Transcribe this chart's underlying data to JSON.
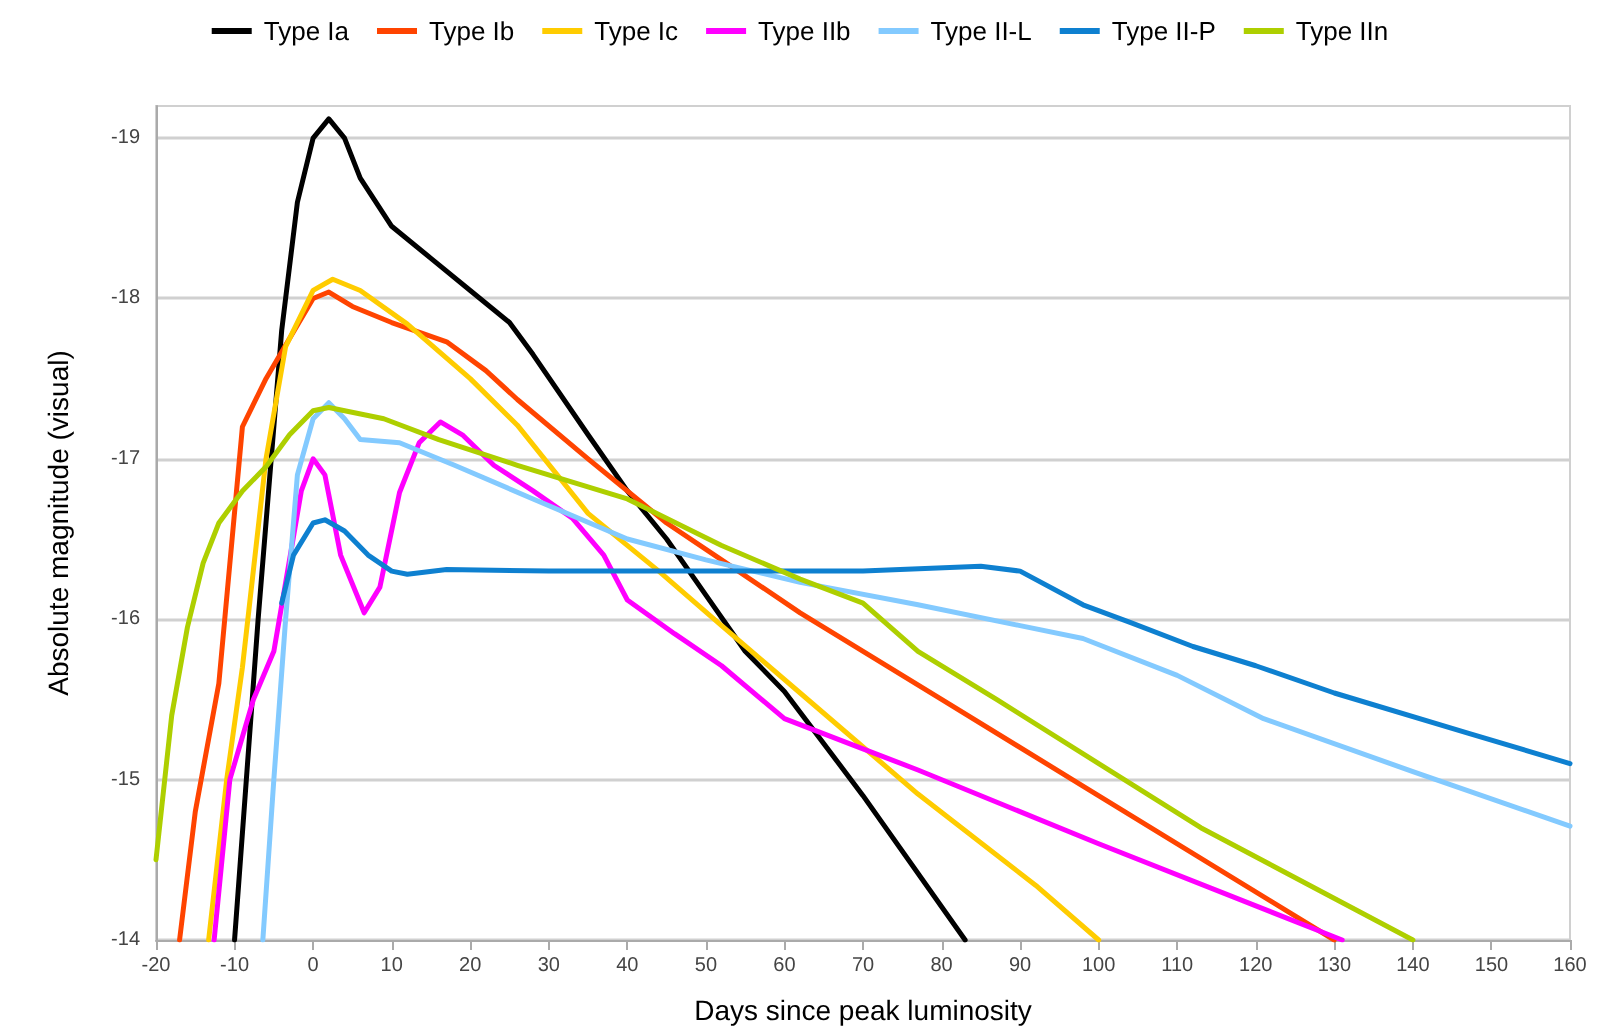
{
  "chart_data": {
    "type": "line",
    "xlabel": "Days since peak luminosity",
    "ylabel": "Absolute magnitude (visual)",
    "xlim": [
      -20,
      160
    ],
    "xticks": [
      -20,
      -10,
      0,
      10,
      20,
      30,
      40,
      50,
      60,
      70,
      80,
      90,
      100,
      110,
      120,
      130,
      140,
      150,
      160
    ],
    "ylim": [
      -14,
      -19.2
    ],
    "yticks": [
      -14,
      -15,
      -16,
      -17,
      -18,
      -19
    ],
    "grid": "y",
    "legend": "top",
    "marker": "none",
    "series": [
      {
        "name": "Type Ia",
        "color": "#000000",
        "x": [
          -10,
          -7,
          -4,
          -2,
          0,
          2,
          4,
          6,
          10,
          15,
          20,
          25,
          28,
          35,
          40,
          45,
          50,
          55,
          60,
          70,
          83
        ],
        "values": [
          -14,
          -16,
          -17.8,
          -18.6,
          -19,
          -19.12,
          -19,
          -18.75,
          -18.45,
          -18.25,
          -18.05,
          -17.85,
          -17.65,
          -17.15,
          -16.8,
          -16.5,
          -16.15,
          -15.8,
          -15.55,
          -14.9,
          -14
        ]
      },
      {
        "name": "Type Ib",
        "color": "#ff4400",
        "x": [
          -17,
          -15,
          -12,
          -9,
          -6,
          -3,
          0,
          2,
          5,
          10,
          17,
          22,
          26,
          35,
          45,
          52,
          62,
          80,
          98,
          130
        ],
        "values": [
          -14,
          -14.8,
          -15.6,
          -17.2,
          -17.5,
          -17.75,
          -18,
          -18.04,
          -17.95,
          -17.85,
          -17.73,
          -17.55,
          -17.37,
          -17,
          -16.6,
          -16.37,
          -16.04,
          -15.5,
          -14.96,
          -14
        ]
      },
      {
        "name": "Type Ic",
        "color": "#ffcc00",
        "x": [
          -13.3,
          -11,
          -9,
          -6,
          -3.5,
          0,
          2.5,
          6,
          12,
          20,
          26,
          35,
          44,
          52,
          62,
          77,
          92,
          100
        ],
        "values": [
          -14,
          -15,
          -15.7,
          -17,
          -17.7,
          -18.05,
          -18.12,
          -18.05,
          -17.84,
          -17.5,
          -17.21,
          -16.66,
          -16.3,
          -15.96,
          -15.54,
          -14.91,
          -14.34,
          -14
        ]
      },
      {
        "name": "Type IIb",
        "color": "#ff00ff",
        "x": [
          -12.6,
          -10.6,
          -7.6,
          -5,
          -1.5,
          0,
          1.5,
          3.5,
          6.5,
          8.5,
          11,
          13.5,
          16.2,
          19,
          23,
          28,
          33,
          37,
          40,
          46,
          52,
          60,
          69,
          77,
          100,
          131
        ],
        "values": [
          -14,
          -15,
          -15.5,
          -15.8,
          -16.8,
          -17,
          -16.9,
          -16.4,
          -16.04,
          -16.2,
          -16.79,
          -17.1,
          -17.23,
          -17.15,
          -16.96,
          -16.8,
          -16.63,
          -16.4,
          -16.12,
          -15.91,
          -15.71,
          -15.38,
          -15.21,
          -15.06,
          -14.6,
          -14
        ]
      },
      {
        "name": "Type II-L",
        "color": "#83caff",
        "x": [
          -6.4,
          -5,
          -3.5,
          -2,
          0,
          2,
          4,
          6,
          11,
          18,
          28,
          40,
          50,
          62,
          77,
          90,
          98,
          110,
          121,
          140,
          160
        ],
        "values": [
          -14,
          -15,
          -16,
          -16.9,
          -17.25,
          -17.35,
          -17.25,
          -17.12,
          -17.1,
          -16.96,
          -16.75,
          -16.5,
          -16.37,
          -16.23,
          -16.09,
          -15.96,
          -15.88,
          -15.65,
          -15.38,
          -15.05,
          -14.71
        ]
      },
      {
        "name": "Type II-P",
        "color": "#0e80d0",
        "x": [
          -4,
          -2.5,
          0,
          1.5,
          4,
          7,
          10,
          12,
          17,
          30,
          50,
          70,
          85,
          90,
          98,
          104,
          112,
          120,
          130,
          147,
          160
        ],
        "values": [
          -16.1,
          -16.4,
          -16.6,
          -16.62,
          -16.55,
          -16.4,
          -16.3,
          -16.28,
          -16.31,
          -16.3,
          -16.3,
          -16.3,
          -16.33,
          -16.3,
          -16.09,
          -15.98,
          -15.83,
          -15.71,
          -15.54,
          -15.29,
          -15.1
        ]
      },
      {
        "name": "Type IIn",
        "color": "#aecf00",
        "x": [
          -20,
          -18,
          -16,
          -14,
          -12,
          -9,
          -6,
          -3,
          0,
          2,
          9,
          16,
          26,
          40,
          52,
          62,
          70,
          77,
          87,
          113,
          140
        ],
        "values": [
          -14.5,
          -15.4,
          -15.95,
          -16.35,
          -16.6,
          -16.8,
          -16.95,
          -17.15,
          -17.3,
          -17.32,
          -17.25,
          -17.12,
          -16.96,
          -16.75,
          -16.46,
          -16.25,
          -16.1,
          -15.8,
          -15.5,
          -14.7,
          -14
        ]
      }
    ]
  }
}
